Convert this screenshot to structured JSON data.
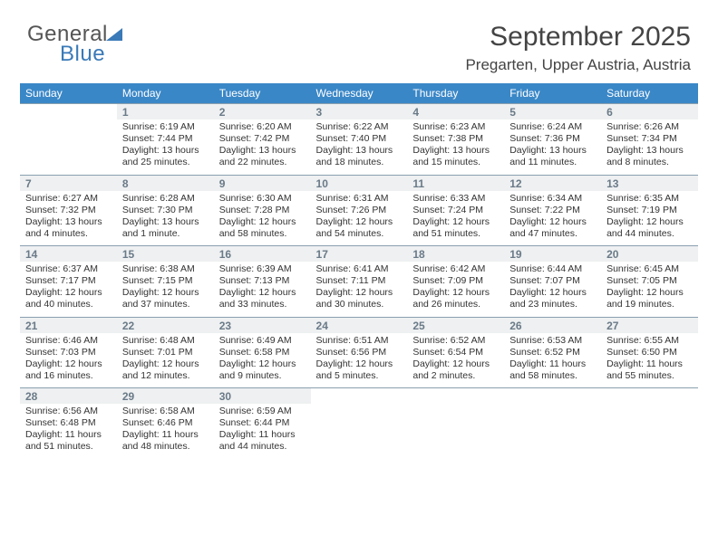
{
  "logo": {
    "word1": "General",
    "word2": "Blue"
  },
  "header": {
    "month_title": "September 2025",
    "location": "Pregarten, Upper Austria, Austria"
  },
  "colors": {
    "header_bg": "#3a87c7",
    "header_text": "#ffffff",
    "daynum_bg": "#eef0f1",
    "border": "#8aa0b0",
    "logo_blue": "#3a7ab8"
  },
  "day_labels": [
    "Sunday",
    "Monday",
    "Tuesday",
    "Wednesday",
    "Thursday",
    "Friday",
    "Saturday"
  ],
  "weeks": [
    {
      "nums": [
        "",
        "1",
        "2",
        "3",
        "4",
        "5",
        "6"
      ],
      "cells": [
        null,
        {
          "sunrise": "Sunrise: 6:19 AM",
          "sunset": "Sunset: 7:44 PM",
          "day1": "Daylight: 13 hours",
          "day2": "and 25 minutes."
        },
        {
          "sunrise": "Sunrise: 6:20 AM",
          "sunset": "Sunset: 7:42 PM",
          "day1": "Daylight: 13 hours",
          "day2": "and 22 minutes."
        },
        {
          "sunrise": "Sunrise: 6:22 AM",
          "sunset": "Sunset: 7:40 PM",
          "day1": "Daylight: 13 hours",
          "day2": "and 18 minutes."
        },
        {
          "sunrise": "Sunrise: 6:23 AM",
          "sunset": "Sunset: 7:38 PM",
          "day1": "Daylight: 13 hours",
          "day2": "and 15 minutes."
        },
        {
          "sunrise": "Sunrise: 6:24 AM",
          "sunset": "Sunset: 7:36 PM",
          "day1": "Daylight: 13 hours",
          "day2": "and 11 minutes."
        },
        {
          "sunrise": "Sunrise: 6:26 AM",
          "sunset": "Sunset: 7:34 PM",
          "day1": "Daylight: 13 hours",
          "day2": "and 8 minutes."
        }
      ]
    },
    {
      "nums": [
        "7",
        "8",
        "9",
        "10",
        "11",
        "12",
        "13"
      ],
      "cells": [
        {
          "sunrise": "Sunrise: 6:27 AM",
          "sunset": "Sunset: 7:32 PM",
          "day1": "Daylight: 13 hours",
          "day2": "and 4 minutes."
        },
        {
          "sunrise": "Sunrise: 6:28 AM",
          "sunset": "Sunset: 7:30 PM",
          "day1": "Daylight: 13 hours",
          "day2": "and 1 minute."
        },
        {
          "sunrise": "Sunrise: 6:30 AM",
          "sunset": "Sunset: 7:28 PM",
          "day1": "Daylight: 12 hours",
          "day2": "and 58 minutes."
        },
        {
          "sunrise": "Sunrise: 6:31 AM",
          "sunset": "Sunset: 7:26 PM",
          "day1": "Daylight: 12 hours",
          "day2": "and 54 minutes."
        },
        {
          "sunrise": "Sunrise: 6:33 AM",
          "sunset": "Sunset: 7:24 PM",
          "day1": "Daylight: 12 hours",
          "day2": "and 51 minutes."
        },
        {
          "sunrise": "Sunrise: 6:34 AM",
          "sunset": "Sunset: 7:22 PM",
          "day1": "Daylight: 12 hours",
          "day2": "and 47 minutes."
        },
        {
          "sunrise": "Sunrise: 6:35 AM",
          "sunset": "Sunset: 7:19 PM",
          "day1": "Daylight: 12 hours",
          "day2": "and 44 minutes."
        }
      ]
    },
    {
      "nums": [
        "14",
        "15",
        "16",
        "17",
        "18",
        "19",
        "20"
      ],
      "cells": [
        {
          "sunrise": "Sunrise: 6:37 AM",
          "sunset": "Sunset: 7:17 PM",
          "day1": "Daylight: 12 hours",
          "day2": "and 40 minutes."
        },
        {
          "sunrise": "Sunrise: 6:38 AM",
          "sunset": "Sunset: 7:15 PM",
          "day1": "Daylight: 12 hours",
          "day2": "and 37 minutes."
        },
        {
          "sunrise": "Sunrise: 6:39 AM",
          "sunset": "Sunset: 7:13 PM",
          "day1": "Daylight: 12 hours",
          "day2": "and 33 minutes."
        },
        {
          "sunrise": "Sunrise: 6:41 AM",
          "sunset": "Sunset: 7:11 PM",
          "day1": "Daylight: 12 hours",
          "day2": "and 30 minutes."
        },
        {
          "sunrise": "Sunrise: 6:42 AM",
          "sunset": "Sunset: 7:09 PM",
          "day1": "Daylight: 12 hours",
          "day2": "and 26 minutes."
        },
        {
          "sunrise": "Sunrise: 6:44 AM",
          "sunset": "Sunset: 7:07 PM",
          "day1": "Daylight: 12 hours",
          "day2": "and 23 minutes."
        },
        {
          "sunrise": "Sunrise: 6:45 AM",
          "sunset": "Sunset: 7:05 PM",
          "day1": "Daylight: 12 hours",
          "day2": "and 19 minutes."
        }
      ]
    },
    {
      "nums": [
        "21",
        "22",
        "23",
        "24",
        "25",
        "26",
        "27"
      ],
      "cells": [
        {
          "sunrise": "Sunrise: 6:46 AM",
          "sunset": "Sunset: 7:03 PM",
          "day1": "Daylight: 12 hours",
          "day2": "and 16 minutes."
        },
        {
          "sunrise": "Sunrise: 6:48 AM",
          "sunset": "Sunset: 7:01 PM",
          "day1": "Daylight: 12 hours",
          "day2": "and 12 minutes."
        },
        {
          "sunrise": "Sunrise: 6:49 AM",
          "sunset": "Sunset: 6:58 PM",
          "day1": "Daylight: 12 hours",
          "day2": "and 9 minutes."
        },
        {
          "sunrise": "Sunrise: 6:51 AM",
          "sunset": "Sunset: 6:56 PM",
          "day1": "Daylight: 12 hours",
          "day2": "and 5 minutes."
        },
        {
          "sunrise": "Sunrise: 6:52 AM",
          "sunset": "Sunset: 6:54 PM",
          "day1": "Daylight: 12 hours",
          "day2": "and 2 minutes."
        },
        {
          "sunrise": "Sunrise: 6:53 AM",
          "sunset": "Sunset: 6:52 PM",
          "day1": "Daylight: 11 hours",
          "day2": "and 58 minutes."
        },
        {
          "sunrise": "Sunrise: 6:55 AM",
          "sunset": "Sunset: 6:50 PM",
          "day1": "Daylight: 11 hours",
          "day2": "and 55 minutes."
        }
      ]
    },
    {
      "nums": [
        "28",
        "29",
        "30",
        "",
        "",
        "",
        ""
      ],
      "cells": [
        {
          "sunrise": "Sunrise: 6:56 AM",
          "sunset": "Sunset: 6:48 PM",
          "day1": "Daylight: 11 hours",
          "day2": "and 51 minutes."
        },
        {
          "sunrise": "Sunrise: 6:58 AM",
          "sunset": "Sunset: 6:46 PM",
          "day1": "Daylight: 11 hours",
          "day2": "and 48 minutes."
        },
        {
          "sunrise": "Sunrise: 6:59 AM",
          "sunset": "Sunset: 6:44 PM",
          "day1": "Daylight: 11 hours",
          "day2": "and 44 minutes."
        },
        null,
        null,
        null,
        null
      ]
    }
  ]
}
